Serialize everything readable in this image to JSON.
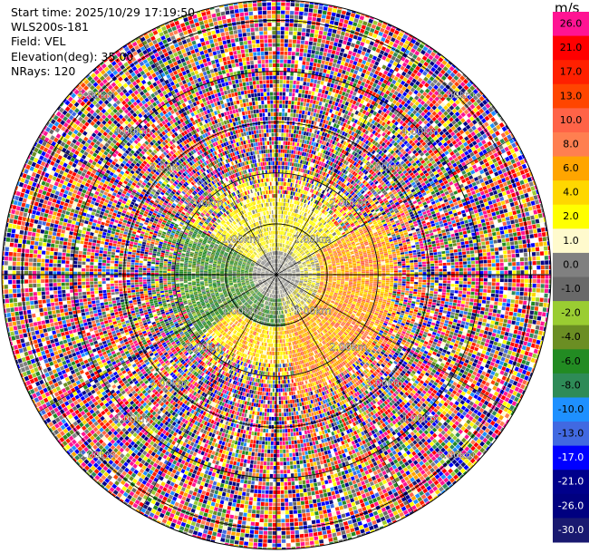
{
  "info": {
    "start_time": "Start time: 2025/10/29 17:19:50",
    "instrument": "WLS200s-181",
    "field": "Field: VEL",
    "elevation": "Elevation(deg): 35.00",
    "nrays": "NRays: 120"
  },
  "colorbar": {
    "unit": "m/s",
    "levels": [
      {
        "label": "26.0",
        "color": "#ff1493"
      },
      {
        "label": "21.0",
        "color": "#ff0000"
      },
      {
        "label": "17.0",
        "color": "#ff2000"
      },
      {
        "label": "13.0",
        "color": "#ff4500"
      },
      {
        "label": "10.0",
        "color": "#ff6347"
      },
      {
        "label": "8.0",
        "color": "#ff7f50"
      },
      {
        "label": "6.0",
        "color": "#ffa500"
      },
      {
        "label": "4.0",
        "color": "#ffd700"
      },
      {
        "label": "2.0",
        "color": "#ffff00"
      },
      {
        "label": "1.0",
        "color": "#fffacd"
      },
      {
        "label": "0.0",
        "color": "#808080"
      },
      {
        "label": "-1.0",
        "color": "#696969"
      },
      {
        "label": "-2.0",
        "color": "#9acd32"
      },
      {
        "label": "-4.0",
        "color": "#6b8e23"
      },
      {
        "label": "-6.0",
        "color": "#228b22"
      },
      {
        "label": "-8.0",
        "color": "#2e8b57"
      },
      {
        "label": "-10.0",
        "color": "#1e90ff"
      },
      {
        "label": "-13.0",
        "color": "#4169e1"
      },
      {
        "label": "-17.0",
        "color": "#0000ff"
      },
      {
        "label": "-21.0",
        "color": "#00008b"
      },
      {
        "label": "-26.0",
        "color": "#000080"
      },
      {
        "label": "-30.0",
        "color": "#191970"
      }
    ]
  },
  "chart_data": {
    "type": "heatmap",
    "subtype": "radar-ppi",
    "field": "VEL",
    "elevation_deg": 35.0,
    "n_rays": 120,
    "range_rings": [
      "1.00km",
      "2.00km",
      "3.00km",
      "4.00km",
      "5.00km"
    ],
    "max_range_km": 5.4,
    "inner_echo": {
      "yellow_sector_range_km": [
        0.3,
        1.5
      ],
      "orange_sector_range_km": [
        0.8,
        2.3
      ],
      "green_sector_range_km": [
        0.5,
        1.9
      ]
    }
  }
}
